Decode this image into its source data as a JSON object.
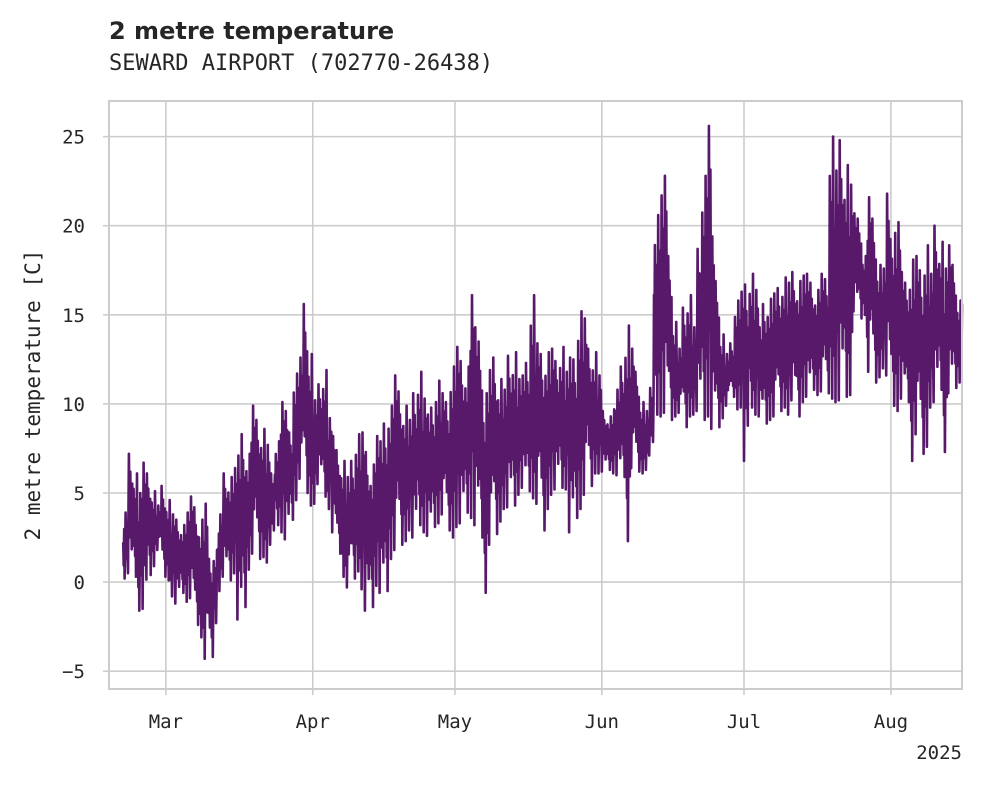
{
  "title": "2 metre temperature",
  "subtitle": "SEWARD AIRPORT (702770-26438)",
  "colors": {
    "line": "#58196b",
    "grid": "#cccccc",
    "axes_frame": "#cccccc",
    "text": "#262626",
    "background": "#ffffff"
  },
  "chart_data": {
    "type": "line",
    "title": "2 metre temperature",
    "subtitle": "SEWARD AIRPORT (702770-26438)",
    "xlabel": "",
    "ylabel": "2 metre temperature [C]",
    "x_type": "date",
    "xlim": [
      "2025-02-17",
      "2025-08-16"
    ],
    "ylim": [
      -6,
      27
    ],
    "x_ticks": [
      {
        "date": "2025-03-01",
        "label": "Mar"
      },
      {
        "date": "2025-04-01",
        "label": "Apr"
      },
      {
        "date": "2025-05-01",
        "label": "May"
      },
      {
        "date": "2025-06-01",
        "label": "Jun"
      },
      {
        "date": "2025-07-01",
        "label": "Jul"
      },
      {
        "date": "2025-08-01",
        "label": "Aug"
      }
    ],
    "x_offset_label": "2025",
    "y_ticks": [
      -5,
      0,
      5,
      10,
      15,
      20,
      25
    ],
    "grid": true,
    "legend": "none",
    "series": [
      {
        "x": [
          "2025-02-20",
          "2025-02-21",
          "2025-02-22",
          "2025-02-23",
          "2025-02-24",
          "2025-02-25",
          "2025-02-26",
          "2025-02-27",
          "2025-02-28",
          "2025-03-01",
          "2025-03-02",
          "2025-03-03",
          "2025-03-04",
          "2025-03-05",
          "2025-03-06",
          "2025-03-07",
          "2025-03-08",
          "2025-03-09",
          "2025-03-10",
          "2025-03-11",
          "2025-03-12",
          "2025-03-13",
          "2025-03-14",
          "2025-03-15",
          "2025-03-16",
          "2025-03-17",
          "2025-03-18",
          "2025-03-19",
          "2025-03-20",
          "2025-03-21",
          "2025-03-22",
          "2025-03-23",
          "2025-03-24",
          "2025-03-25",
          "2025-03-26",
          "2025-03-27",
          "2025-03-28",
          "2025-03-29",
          "2025-03-30",
          "2025-03-31",
          "2025-04-01",
          "2025-04-02",
          "2025-04-03",
          "2025-04-04",
          "2025-04-05",
          "2025-04-06",
          "2025-04-07",
          "2025-04-08",
          "2025-04-09",
          "2025-04-10",
          "2025-04-11",
          "2025-04-12",
          "2025-04-13",
          "2025-04-14",
          "2025-04-15",
          "2025-04-16",
          "2025-04-17",
          "2025-04-18",
          "2025-04-19",
          "2025-04-20",
          "2025-04-21",
          "2025-04-22",
          "2025-04-23",
          "2025-04-24",
          "2025-04-25",
          "2025-04-26",
          "2025-04-27",
          "2025-04-28",
          "2025-04-29",
          "2025-04-30",
          "2025-05-01",
          "2025-05-02",
          "2025-05-03",
          "2025-05-04",
          "2025-05-05",
          "2025-05-06",
          "2025-05-07",
          "2025-05-08",
          "2025-05-09",
          "2025-05-10",
          "2025-05-11",
          "2025-05-12",
          "2025-05-13",
          "2025-05-14",
          "2025-05-15",
          "2025-05-16",
          "2025-05-17",
          "2025-05-18",
          "2025-05-19",
          "2025-05-20",
          "2025-05-21",
          "2025-05-22",
          "2025-05-23",
          "2025-05-24",
          "2025-05-25",
          "2025-05-26",
          "2025-05-27",
          "2025-05-28",
          "2025-05-29",
          "2025-05-30",
          "2025-05-31",
          "2025-06-01",
          "2025-06-02",
          "2025-06-03",
          "2025-06-04",
          "2025-06-05",
          "2025-06-06",
          "2025-06-07",
          "2025-06-08",
          "2025-06-09",
          "2025-06-10",
          "2025-06-11",
          "2025-06-12",
          "2025-06-13",
          "2025-06-14",
          "2025-06-15",
          "2025-06-16",
          "2025-06-17",
          "2025-06-18",
          "2025-06-19",
          "2025-06-20",
          "2025-06-21",
          "2025-06-22",
          "2025-06-23",
          "2025-06-24",
          "2025-06-25",
          "2025-06-26",
          "2025-06-27",
          "2025-06-28",
          "2025-06-29",
          "2025-06-30",
          "2025-07-01",
          "2025-07-02",
          "2025-07-03",
          "2025-07-04",
          "2025-07-05",
          "2025-07-06",
          "2025-07-07",
          "2025-07-08",
          "2025-07-09",
          "2025-07-10",
          "2025-07-11",
          "2025-07-12",
          "2025-07-13",
          "2025-07-14",
          "2025-07-15",
          "2025-07-16",
          "2025-07-17",
          "2025-07-18",
          "2025-07-19",
          "2025-07-20",
          "2025-07-21",
          "2025-07-22",
          "2025-07-23",
          "2025-07-24",
          "2025-07-25",
          "2025-07-26",
          "2025-07-27",
          "2025-07-28",
          "2025-07-29",
          "2025-07-30",
          "2025-07-31",
          "2025-08-01",
          "2025-08-02",
          "2025-08-03",
          "2025-08-04",
          "2025-08-05",
          "2025-08-06",
          "2025-08-07",
          "2025-08-08",
          "2025-08-09",
          "2025-08-10",
          "2025-08-11",
          "2025-08-12",
          "2025-08-13",
          "2025-08-14",
          "2025-08-15"
        ],
        "min": [
          0.2,
          0.5,
          0.3,
          -1.6,
          -1.5,
          0.4,
          0.9,
          1.8,
          0.3,
          0.1,
          -0.8,
          -1.2,
          -0.6,
          -1.1,
          -0.9,
          -2.4,
          -3.1,
          -4.3,
          -4.2,
          -2.3,
          -0.5,
          0.3,
          0.1,
          0.5,
          -2.1,
          -1.4,
          0.7,
          1.6,
          1.3,
          1.4,
          1.1,
          2.1,
          3.2,
          2.8,
          2.4,
          3.5,
          4.6,
          5.8,
          5.0,
          4.3,
          4.4,
          5.5,
          4.8,
          4.1,
          2.8,
          1.6,
          0.3,
          -0.3,
          0.2,
          0.6,
          -0.4,
          -1.6,
          -1.4,
          -0.2,
          -0.6,
          -0.5,
          1.3,
          1.8,
          2.1,
          2.3,
          2.9,
          2.5,
          3.2,
          2.8,
          2.6,
          3.1,
          3.3,
          3.8,
          2.9,
          2.5,
          3.1,
          3.3,
          3.9,
          3.6,
          3.2,
          2.5,
          -0.6,
          2.1,
          2.7,
          3.4,
          4.1,
          4.2,
          4.3,
          4.9,
          5.3,
          5.1,
          4.7,
          4.4,
          2.9,
          4.1,
          4.9,
          5.2,
          5.3,
          5.2,
          2.8,
          3.6,
          4.1,
          4.9,
          5.4,
          6.1,
          6.1,
          6.2,
          6.3,
          6.1,
          6.0,
          5.9,
          2.3,
          6.4,
          6.2,
          6.1,
          6.3,
          7.1,
          9.4,
          9.3,
          9.5,
          9.1,
          9.3,
          9.5,
          8.7,
          9.3,
          9.4,
          9.6,
          9.1,
          9.3,
          8.6,
          8.7,
          9.2,
          9.9,
          10.4,
          9.7,
          9.8,
          6.8,
          9.8,
          9.4,
          9.3,
          8.9,
          9.1,
          9.3,
          9.6,
          9.8,
          9.4,
          10.2,
          9.3,
          10.1,
          10.4,
          10.8,
          10.5,
          10.7,
          10.6,
          10.3,
          10.1,
          10.2,
          10.4,
          10.5,
          15.2,
          14.8,
          15.0,
          11.8,
          11.2,
          11.5,
          12.0,
          11.6,
          9.9,
          9.6,
          10.3,
          10.1,
          6.8,
          8.3,
          7.2,
          7.6,
          9.8,
          10.1,
          10.8,
          7.3,
          10.6,
          10.9,
          11.2
        ],
        "max": [
          3.9,
          7.2,
          6.1,
          5.0,
          6.7,
          6.1,
          5.1,
          4.3,
          5.4,
          4.6,
          3.8,
          3.5,
          3.2,
          3.9,
          4.8,
          4.2,
          3.5,
          4.4,
          1.3,
          1.8,
          3.8,
          6.1,
          5.9,
          6.4,
          7.1,
          8.3,
          7.2,
          9.9,
          9.1,
          8.6,
          7.7,
          6.1,
          7.9,
          10.1,
          9.6,
          8.4,
          11.7,
          12.6,
          15.6,
          12.8,
          10.2,
          11.1,
          11.9,
          9.2,
          8.2,
          7.4,
          6.8,
          5.9,
          6.8,
          8.3,
          8.4,
          7.3,
          6.6,
          8.2,
          7.9,
          8.9,
          9.9,
          11.6,
          10.7,
          9.9,
          9.1,
          10.6,
          11.8,
          10.3,
          9.4,
          9.8,
          11.3,
          10.6,
          10.1,
          12.1,
          13.2,
          12.4,
          12.1,
          16.1,
          14.3,
          13.5,
          10.6,
          11.9,
          12.6,
          11.4,
          10.8,
          12.7,
          12.9,
          11.4,
          11.6,
          12.3,
          16.1,
          13.4,
          12.8,
          12.9,
          13.1,
          12.4,
          13.2,
          11.8,
          12.6,
          12.5,
          15.2,
          14.8,
          13.1,
          12.9,
          11.6,
          9.6,
          9.3,
          9.7,
          10.8,
          12.1,
          14.4,
          13.1,
          11.8,
          10.1,
          9.6,
          10.9,
          20.6,
          21.7,
          22.8,
          18.3,
          14.6,
          13.1,
          15.4,
          16.1,
          14.3,
          18.7,
          22.8,
          25.6,
          19.4,
          16.9,
          13.9,
          12.8,
          13.4,
          15.8,
          16.3,
          16.7,
          17.3,
          16.4,
          14.3,
          15.6,
          15.9,
          16.2,
          16.5,
          17.1,
          16.8,
          17.4,
          16.9,
          17.2,
          17.3,
          16.8,
          16.4,
          17.3,
          17.0,
          25.0,
          23.1,
          24.8,
          23.4,
          22.3,
          20.7,
          20.4,
          18.3,
          21.6,
          20.4,
          17.8,
          17.6,
          21.8,
          19.6,
          20.2,
          17.4,
          16.8,
          18.1,
          18.3,
          17.5,
          18.9,
          17.3,
          20.0,
          19.1,
          17.6,
          18.9,
          17.8,
          15.8
        ],
        "last_value": 15.6
      }
    ]
  }
}
